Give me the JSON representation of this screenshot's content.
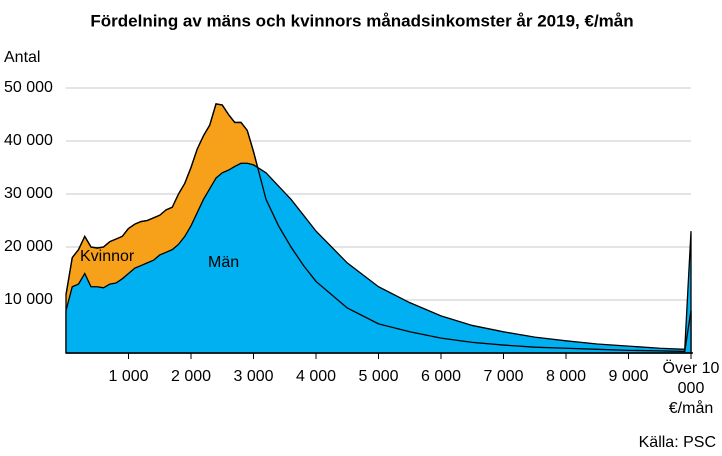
{
  "chart_data": {
    "type": "area",
    "title": "Fördelning av mäns och kvinnors månadsinkomster år 2019, €/mån",
    "y_label": "Antal",
    "source": "Källa: PSC",
    "x": [
      0,
      100,
      200,
      300,
      400,
      500,
      600,
      700,
      800,
      900,
      1000,
      1100,
      1200,
      1300,
      1400,
      1500,
      1600,
      1700,
      1800,
      1900,
      2000,
      2100,
      2200,
      2300,
      2400,
      2500,
      2600,
      2700,
      2800,
      2900,
      3000,
      3200,
      3400,
      3600,
      3800,
      4000,
      4500,
      5000,
      5500,
      6000,
      6500,
      7000,
      7500,
      8000,
      8500,
      9000,
      9500,
      9900,
      10000
    ],
    "series": [
      {
        "name": "Kvinnor",
        "color": "#f7a11a",
        "values": [
          11000,
          18000,
          19500,
          22000,
          20000,
          19800,
          20000,
          21000,
          21500,
          22000,
          23500,
          24300,
          24800,
          25000,
          25500,
          26000,
          27000,
          27500,
          30000,
          32000,
          35000,
          38500,
          41000,
          43000,
          47000,
          46800,
          45000,
          43500,
          43500,
          42000,
          38000,
          29000,
          24000,
          20000,
          16500,
          13500,
          8500,
          5500,
          4000,
          2800,
          2000,
          1500,
          1100,
          900,
          700,
          500,
          400,
          300,
          8000
        ]
      },
      {
        "name": "Män",
        "color": "#00b0f0",
        "values": [
          8000,
          12500,
          13000,
          15000,
          12500,
          12500,
          12300,
          13000,
          13200,
          14000,
          15000,
          16000,
          16500,
          17000,
          17500,
          18500,
          19000,
          19500,
          20500,
          22000,
          24000,
          26500,
          29000,
          31000,
          33000,
          34000,
          34500,
          35200,
          35800,
          35800,
          35500,
          34000,
          31500,
          29000,
          26000,
          23000,
          17000,
          12500,
          9500,
          7000,
          5200,
          4000,
          3000,
          2300,
          1700,
          1300,
          900,
          700,
          23000
        ]
      }
    ],
    "xlim": [
      0,
      10000
    ],
    "ylim": [
      0,
      50000
    ],
    "xticks": [
      {
        "value": 1000,
        "label": "1 000"
      },
      {
        "value": 2000,
        "label": "2 000"
      },
      {
        "value": 3000,
        "label": "3 000"
      },
      {
        "value": 4000,
        "label": "4 000"
      },
      {
        "value": 5000,
        "label": "5 000"
      },
      {
        "value": 6000,
        "label": "6 000"
      },
      {
        "value": 7000,
        "label": "7 000"
      },
      {
        "value": 8000,
        "label": "8 000"
      },
      {
        "value": 9000,
        "label": "9 000"
      },
      {
        "value": 10000,
        "label": "Över 10 000 €/mån"
      }
    ],
    "yticks": [
      {
        "value": 10000,
        "label": "10 000"
      },
      {
        "value": 20000,
        "label": "20 000"
      },
      {
        "value": 30000,
        "label": "30 000"
      },
      {
        "value": 40000,
        "label": "40 000"
      },
      {
        "value": 50000,
        "label": "50 000"
      }
    ],
    "grid": true
  }
}
